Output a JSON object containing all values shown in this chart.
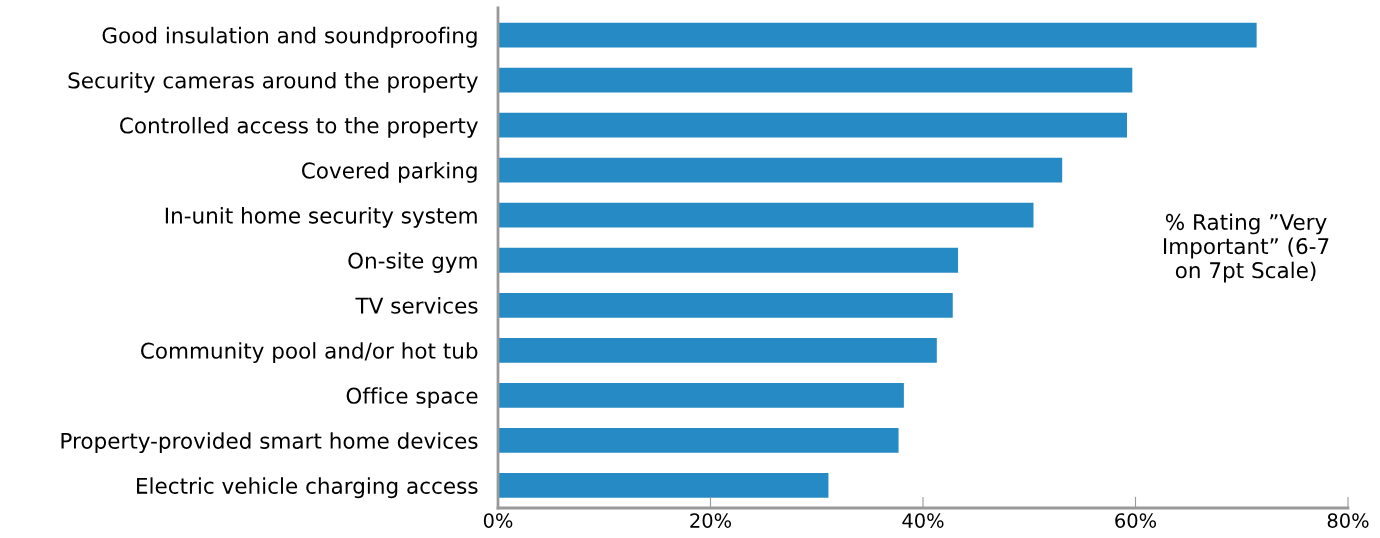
{
  "chart_data": {
    "type": "bar",
    "orientation": "horizontal",
    "categories": [
      "Good insulation and soundproofing",
      "Security cameras around the property",
      "Controlled access to the property",
      "Covered parking",
      "In-unit home security system",
      "On-site gym",
      "TV services",
      "Community pool and/or hot tub",
      "Office space",
      "Property-provided smart home devices",
      "Electric vehicle charging access"
    ],
    "values": [
      71.4,
      59.7,
      59.2,
      53.1,
      50.4,
      43.3,
      42.8,
      41.3,
      38.2,
      37.7,
      31.1
    ],
    "color": "#268bc4",
    "xlim": [
      0,
      80
    ],
    "xticks": [
      {
        "value": 0,
        "label": "0%"
      },
      {
        "value": 20,
        "label": "20%"
      },
      {
        "value": 40,
        "label": "40%"
      },
      {
        "value": 60,
        "label": "60%"
      },
      {
        "value": 80,
        "label": "80%"
      }
    ],
    "annotations": [
      "% Rating ”Very\nImportant” (6-7\non 7pt Scale)"
    ],
    "grid": false,
    "legend": false
  }
}
